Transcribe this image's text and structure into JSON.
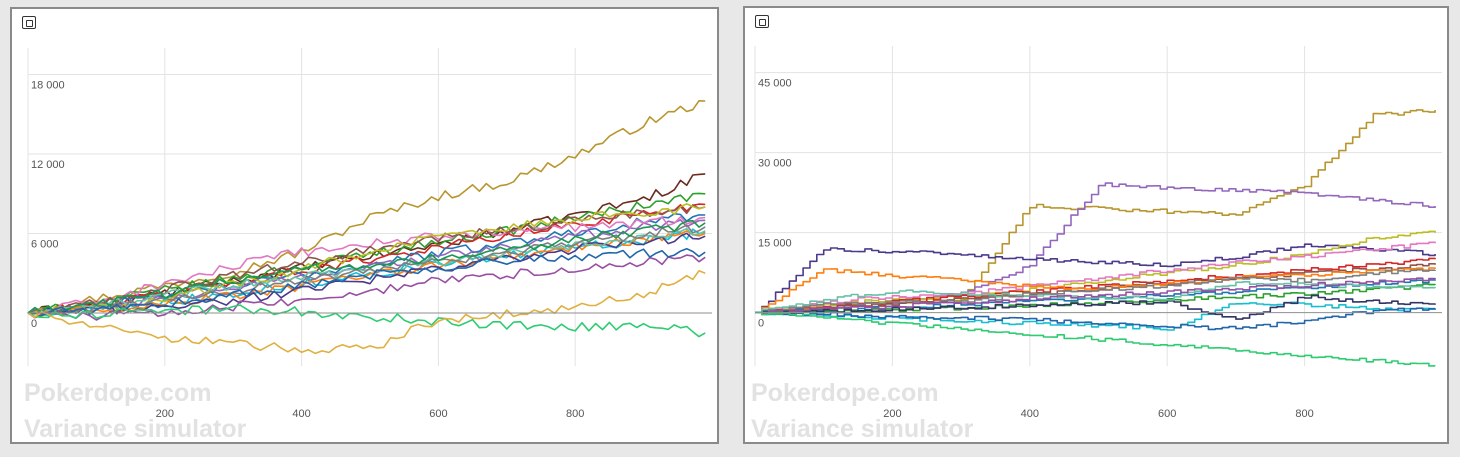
{
  "colors": {
    "background": "#e8e8e8",
    "panel": "#ffffff",
    "panel_border": "#8a8a8a",
    "grid": "#e3e3e3",
    "zero_line": "#8f8f8f",
    "series_palette": [
      "#b8962e",
      "#2c7bb6",
      "#d73027",
      "#1a9850",
      "#984ea3",
      "#ff7f00",
      "#66c2a5",
      "#e78ac3",
      "#8c510a",
      "#4575b4",
      "#a6d854",
      "#17becf",
      "#7b3294",
      "#f4a582",
      "#33a02c",
      "#e6ab02",
      "#1f78b4",
      "#6a3d9a",
      "#d95f02",
      "#666666"
    ]
  },
  "panels": [
    {
      "icon": "expand-icon",
      "watermark_lines": [
        "Pokerdope.com",
        "Variance simulator"
      ]
    },
    {
      "icon": "expand-icon",
      "watermark_lines": [
        "Pokerdope.com",
        "Variance simulator"
      ]
    }
  ],
  "chart_data": [
    {
      "type": "line",
      "title": "",
      "xlabel": "",
      "ylabel": "",
      "xlim": [
        0,
        1000
      ],
      "ylim": [
        -4000,
        20000
      ],
      "x_ticks": [
        200,
        400,
        600,
        800
      ],
      "x_tick_labels": [
        "200",
        "400",
        "600",
        "800"
      ],
      "y_ticks": [
        0,
        6000,
        12000,
        18000
      ],
      "y_tick_labels": [
        "0",
        "6 000",
        "12 000",
        "18 000"
      ],
      "grid": true,
      "series_x": [
        0,
        100,
        200,
        300,
        400,
        500,
        600,
        700,
        800,
        900,
        990
      ],
      "series": [
        {
          "color": "#b8962e",
          "values": [
            0,
            1100,
            2100,
            3100,
            4600,
            7200,
            8800,
            9900,
            11900,
            14300,
            16000
          ]
        },
        {
          "color": "#6b2b1f",
          "values": [
            0,
            700,
            1500,
            2400,
            3400,
            4300,
            5200,
            6200,
            7400,
            8600,
            10500
          ]
        },
        {
          "color": "#2ca02c",
          "values": [
            0,
            800,
            1700,
            2600,
            3500,
            4500,
            5400,
            6200,
            7200,
            8100,
            9000
          ]
        },
        {
          "color": "#d62728",
          "values": [
            0,
            600,
            1400,
            2300,
            3200,
            4100,
            5000,
            5800,
            6700,
            7500,
            8200
          ]
        },
        {
          "color": "#1f77b4",
          "values": [
            0,
            500,
            1200,
            2000,
            2900,
            3700,
            4500,
            5300,
            6100,
            6900,
            7400
          ]
        },
        {
          "color": "#9467bd",
          "values": [
            0,
            400,
            1000,
            1900,
            2700,
            3500,
            4200,
            5000,
            5800,
            6500,
            7000
          ]
        },
        {
          "color": "#e377c2",
          "values": [
            0,
            900,
            2200,
            3500,
            4600,
            5200,
            5800,
            6100,
            6500,
            6800,
            7200
          ]
        },
        {
          "color": "#17becf",
          "values": [
            0,
            300,
            800,
            1500,
            2200,
            3000,
            3700,
            4300,
            4900,
            5500,
            6100
          ]
        },
        {
          "color": "#8c564b",
          "values": [
            0,
            700,
            1800,
            2800,
            3800,
            4700,
            5600,
            6300,
            6900,
            7600,
            8000
          ]
        },
        {
          "color": "#bcbd22",
          "values": [
            0,
            400,
            1100,
            2200,
            3300,
            4600,
            5700,
            6500,
            7100,
            7600,
            8000
          ]
        },
        {
          "color": "#ff7f0e",
          "values": [
            0,
            300,
            700,
            1300,
            2000,
            2800,
            3600,
            4300,
            5000,
            5500,
            6000
          ]
        },
        {
          "color": "#4b3a8c",
          "values": [
            0,
            200,
            500,
            1000,
            1700,
            2500,
            3300,
            4100,
            4800,
            5400,
            5800
          ]
        },
        {
          "color": "#66c2a5",
          "values": [
            0,
            500,
            1300,
            2100,
            2800,
            3300,
            3900,
            4500,
            5100,
            5700,
            6200
          ]
        },
        {
          "color": "#7f7f7f",
          "values": [
            0,
            300,
            900,
            1700,
            2500,
            3100,
            3800,
            4600,
            5300,
            5900,
            6500
          ]
        },
        {
          "color": "#1a9850",
          "values": [
            0,
            600,
            1500,
            2500,
            3300,
            3600,
            4100,
            4800,
            5600,
            6200,
            6800
          ]
        },
        {
          "color": "#984ea3",
          "values": [
            0,
            -200,
            100,
            500,
            900,
            1600,
            2400,
            2900,
            3300,
            3800,
            4200
          ]
        },
        {
          "color": "#2166ac",
          "values": [
            0,
            200,
            700,
            1300,
            2100,
            2900,
            3500,
            3900,
            4200,
            4500,
            4600
          ]
        },
        {
          "color": "#2ecc71",
          "values": [
            0,
            -100,
            200,
            300,
            100,
            -300,
            -600,
            -900,
            -1100,
            -800,
            -1500
          ]
        },
        {
          "color": "#e0b040",
          "values": [
            0,
            -1100,
            -1900,
            -2300,
            -2800,
            -2700,
            -500,
            -100,
            400,
            1500,
            3000
          ]
        }
      ]
    },
    {
      "type": "line",
      "title": "",
      "xlabel": "",
      "ylabel": "",
      "xlim": [
        0,
        1000
      ],
      "ylim": [
        -10000,
        50000
      ],
      "x_ticks": [
        200,
        400,
        600,
        800
      ],
      "x_tick_labels": [
        "200",
        "400",
        "600",
        "800"
      ],
      "y_ticks": [
        0,
        15000,
        30000,
        45000
      ],
      "y_tick_labels": [
        "0",
        "15 000",
        "30 000",
        "45 000"
      ],
      "grid": true,
      "series_x": [
        0,
        100,
        200,
        300,
        400,
        500,
        600,
        700,
        800,
        900,
        990
      ],
      "series": [
        {
          "color": "#b8962e",
          "values": [
            0,
            1000,
            2000,
            2500,
            20000,
            19500,
            19000,
            18500,
            24000,
            37000,
            38000
          ]
        },
        {
          "color": "#9467bd",
          "values": [
            0,
            1000,
            2000,
            3500,
            9000,
            24000,
            23500,
            23000,
            22500,
            21000,
            20000
          ]
        },
        {
          "color": "#4b3a8c",
          "values": [
            0,
            12000,
            11500,
            11000,
            10000,
            9500,
            9000,
            10500,
            12500,
            12000,
            11000
          ]
        },
        {
          "color": "#bcbd22",
          "values": [
            0,
            1500,
            2500,
            3000,
            4500,
            6000,
            7500,
            9000,
            11000,
            14000,
            15000
          ]
        },
        {
          "color": "#e377c2",
          "values": [
            0,
            2000,
            3000,
            3500,
            5000,
            6500,
            8000,
            9500,
            10500,
            12000,
            13000
          ]
        },
        {
          "color": "#d62728",
          "values": [
            0,
            1000,
            2000,
            3000,
            4000,
            5000,
            6000,
            7000,
            8000,
            9000,
            10000
          ]
        },
        {
          "color": "#8c564b",
          "values": [
            0,
            800,
            1700,
            2600,
            3500,
            4500,
            5600,
            6400,
            7400,
            8200,
            9000
          ]
        },
        {
          "color": "#ff7f0e",
          "values": [
            0,
            8000,
            7000,
            6000,
            5000,
            4500,
            5500,
            6500,
            7000,
            7800,
            8200
          ]
        },
        {
          "color": "#1f77b4",
          "values": [
            0,
            500,
            1000,
            1500,
            2200,
            2800,
            3400,
            4000,
            4500,
            5500,
            6000
          ]
        },
        {
          "color": "#2ca02c",
          "values": [
            0,
            0,
            500,
            900,
            1300,
            1800,
            2500,
            3000,
            3500,
            4300,
            5200
          ]
        },
        {
          "color": "#17becf",
          "values": [
            0,
            -500,
            -1000,
            -1500,
            -2000,
            -2500,
            -3000,
            2000,
            1500,
            800,
            500
          ]
        },
        {
          "color": "#333366",
          "values": [
            0,
            300,
            700,
            1000,
            1400,
            1700,
            2100,
            -1500,
            3000,
            2000,
            1500
          ]
        },
        {
          "color": "#66c2a5",
          "values": [
            0,
            2500,
            4000,
            3500,
            3200,
            2900,
            2600,
            5500,
            5200,
            4900,
            4600
          ]
        },
        {
          "color": "#7f7f7f",
          "values": [
            0,
            1500,
            2200,
            2000,
            3500,
            4300,
            5000,
            6500,
            6000,
            7500,
            8000
          ]
        },
        {
          "color": "#2166ac",
          "values": [
            0,
            -300,
            -700,
            -1000,
            -1300,
            -2000,
            -2500,
            -3000,
            -1500,
            300,
            800
          ]
        },
        {
          "color": "#984ea3",
          "values": [
            0,
            600,
            1200,
            1800,
            2600,
            3200,
            3900,
            4500,
            5200,
            5800,
            6500
          ]
        },
        {
          "color": "#2ecc71",
          "values": [
            0,
            -1000,
            -2000,
            -3000,
            -4000,
            -5000,
            -6000,
            -7000,
            -8000,
            -9000,
            -10000
          ]
        }
      ]
    }
  ]
}
